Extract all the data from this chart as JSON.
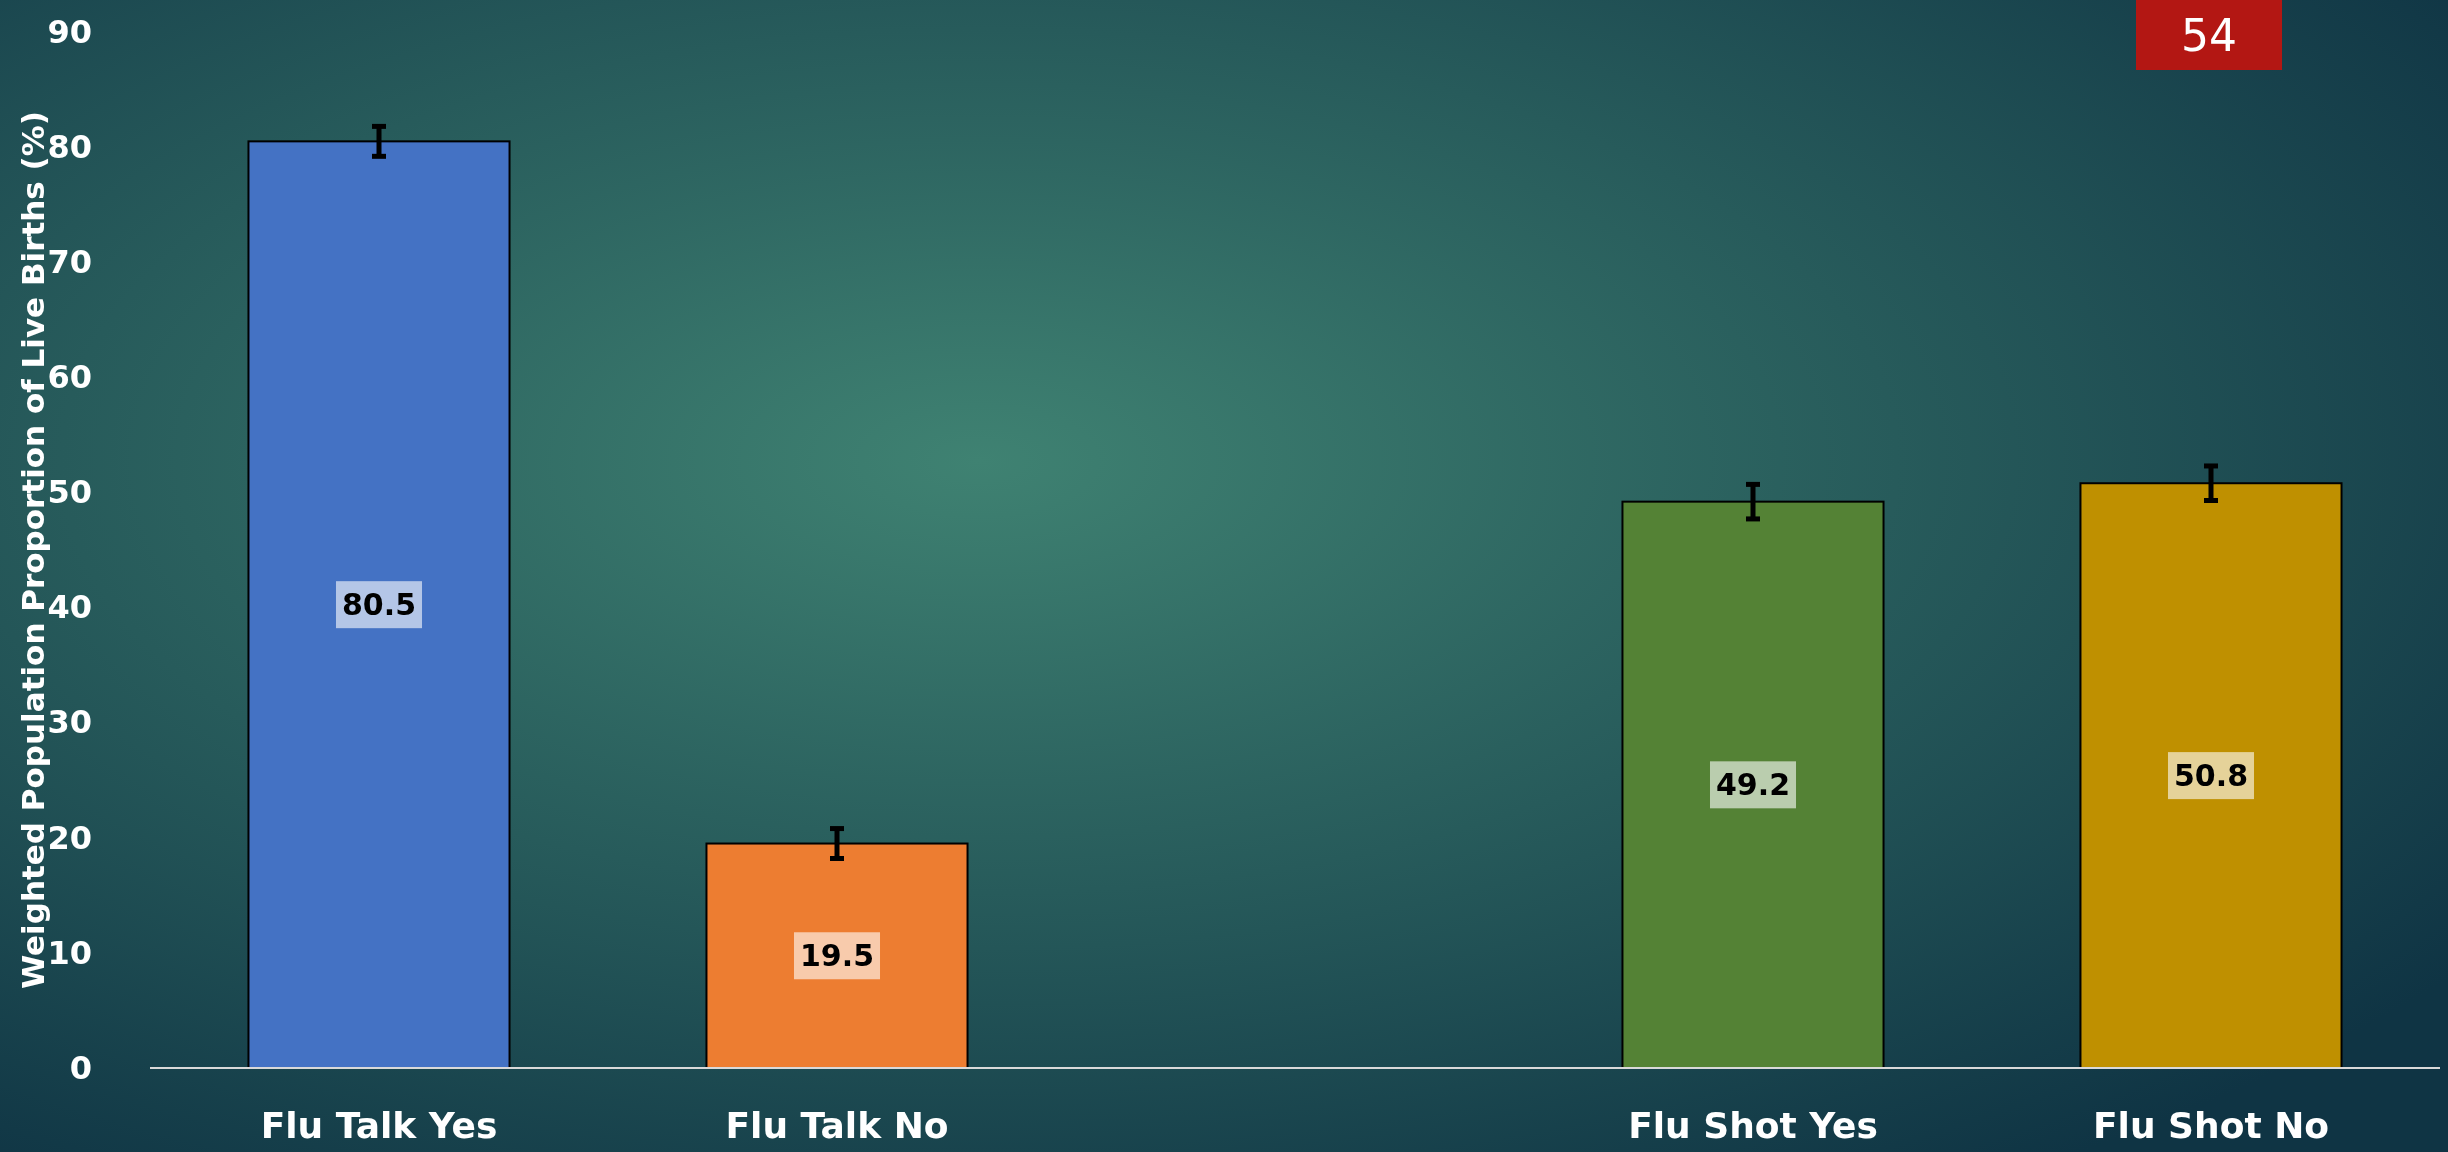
{
  "chart_data": {
    "type": "bar",
    "ylabel": "Weighted Population Proportion of Live Births (%)",
    "categories": [
      "Flu Talk Yes",
      "Flu Talk No",
      null,
      "Flu Shot Yes",
      "Flu Shot No"
    ],
    "values": [
      80.5,
      19.5,
      null,
      49.2,
      50.8
    ],
    "colors": [
      "#4472c4",
      "#ed7d31",
      null,
      "#548235",
      "#bf9000"
    ],
    "errors": [
      1.3,
      1.3,
      null,
      1.5,
      1.5
    ],
    "ylim": [
      0,
      90
    ],
    "yticks": [
      0,
      10,
      20,
      30,
      40,
      50,
      60,
      70,
      80,
      90
    ],
    "data_labels": true,
    "grid": false,
    "annotations": [
      "54"
    ]
  }
}
